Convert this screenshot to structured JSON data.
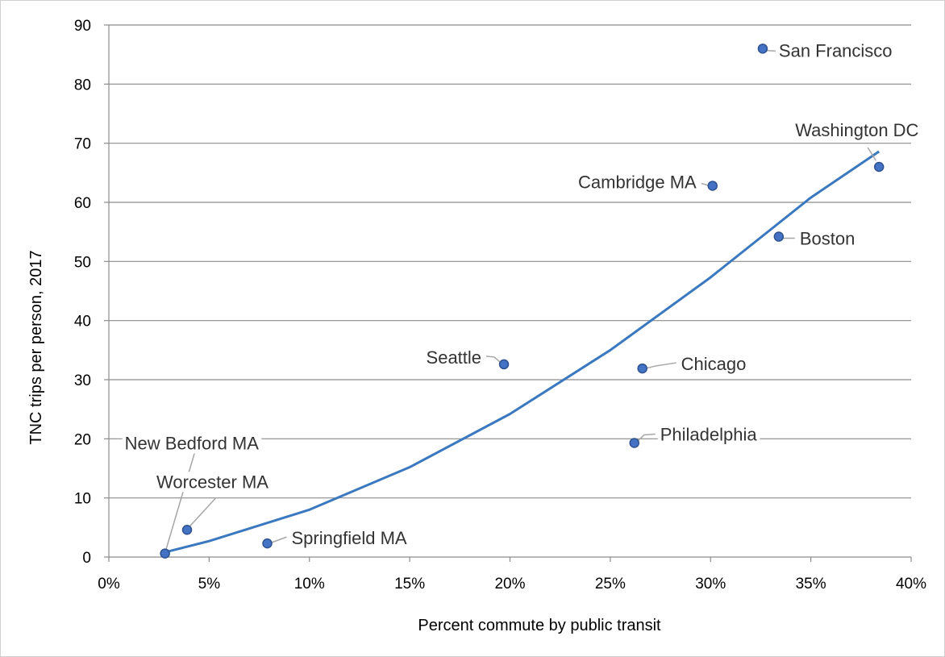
{
  "chart_data": {
    "type": "scatter",
    "title": "",
    "xlabel": "Percent commute by public transit",
    "ylabel": "TNC trips per person, 2017",
    "xlim": [
      0,
      0.4
    ],
    "ylim": [
      0,
      90
    ],
    "x_ticks": [
      0,
      0.05,
      0.1,
      0.15,
      0.2,
      0.25,
      0.3,
      0.35,
      0.4
    ],
    "x_tick_labels": [
      "0%",
      "5%",
      "10%",
      "15%",
      "20%",
      "25%",
      "30%",
      "35%",
      "40%"
    ],
    "y_ticks": [
      0,
      10,
      20,
      30,
      40,
      50,
      60,
      70,
      80,
      90
    ],
    "y_tick_labels": [
      "0",
      "10",
      "20",
      "30",
      "40",
      "50",
      "60",
      "70",
      "80",
      "90"
    ],
    "grid": "horizontal",
    "legend": "none",
    "point_color": "#4472c4",
    "trendline_color": "#3a78c0",
    "points": [
      {
        "label": "San Francisco",
        "x": 0.326,
        "y": 86.0
      },
      {
        "label": "Washington DC",
        "x": 0.384,
        "y": 66.0
      },
      {
        "label": "Cambridge MA",
        "x": 0.301,
        "y": 62.8
      },
      {
        "label": "Boston",
        "x": 0.334,
        "y": 54.2
      },
      {
        "label": "Seattle",
        "x": 0.197,
        "y": 32.6
      },
      {
        "label": "Chicago",
        "x": 0.266,
        "y": 31.9
      },
      {
        "label": "Philadelphia",
        "x": 0.262,
        "y": 19.3
      },
      {
        "label": "New Bedford MA",
        "x": 0.028,
        "y": 0.6
      },
      {
        "label": "Worcester MA",
        "x": 0.039,
        "y": 4.6
      },
      {
        "label": "Springfield MA",
        "x": 0.079,
        "y": 2.3
      }
    ],
    "trendline": {
      "type": "polynomial",
      "x": [
        0.028,
        0.05,
        0.1,
        0.15,
        0.2,
        0.25,
        0.3,
        0.35,
        0.384
      ],
      "y": [
        0.8,
        2.7,
        8.0,
        15.2,
        24.2,
        35.0,
        47.3,
        60.8,
        68.6
      ]
    }
  }
}
